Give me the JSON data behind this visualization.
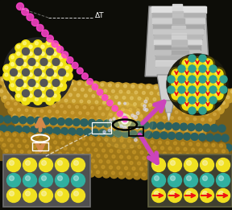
{
  "bg_color": "#0a0a0a",
  "pink_color": "#ff44cc",
  "arrow_color": "#cc44bb",
  "orange_arrow": "#d4894a",
  "yellow_atom": "#f0e020",
  "teal_atom": "#30b0a0",
  "gray_atom": "#606060",
  "red_arrow": "#dd1111",
  "delta_t_label": "ΔT",
  "fig_width": 2.88,
  "fig_height": 2.61,
  "dpi": 100,
  "surface_tan": "#b8902a",
  "surface_dark": "#8a6a10",
  "surface_teal": "#307070"
}
